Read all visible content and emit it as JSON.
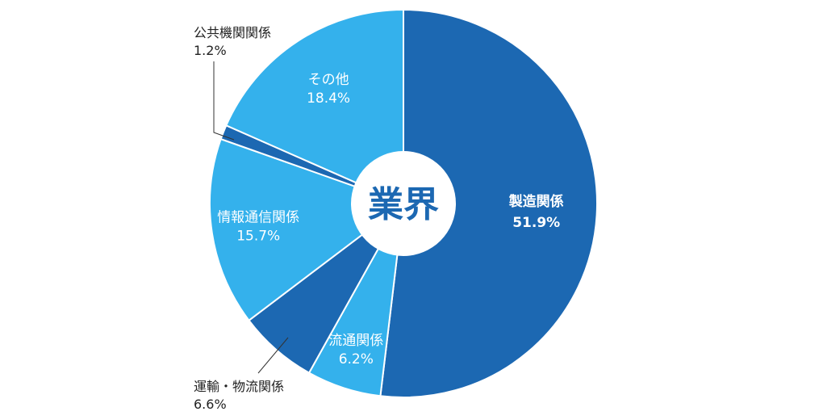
{
  "chart_data": {
    "type": "pie",
    "center_label": "業界",
    "categories": [
      "製造関係",
      "流通関係",
      "運輸・物流関係",
      "情報通信関係",
      "公共機関関係",
      "その他"
    ],
    "values": [
      51.9,
      6.2,
      6.6,
      15.7,
      1.2,
      18.4
    ],
    "value_labels": [
      "51.9%",
      "6.2%",
      "6.6%",
      "15.7%",
      "1.2%",
      "18.4%"
    ],
    "colors": [
      "#1c68b2",
      "#34b1ec",
      "#1c68b2",
      "#34b1ec",
      "#1c68b2",
      "#34b1ec"
    ],
    "label_placement": [
      "inside",
      "inside",
      "outside",
      "inside",
      "outside",
      "inside"
    ],
    "start": "12 o'clock",
    "direction": "clockwise"
  }
}
